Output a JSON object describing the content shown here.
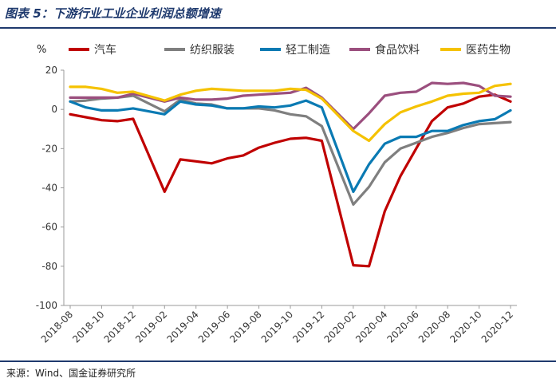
{
  "header": {
    "title": "图表 5：下游行业工业企业利润总额增速"
  },
  "footer": {
    "source": "来源：Wind、国金证券研究所"
  },
  "chart_data": {
    "type": "line",
    "unit_label": "%",
    "ylim": [
      -100,
      20
    ],
    "yticks": [
      20,
      0,
      -20,
      -40,
      -60,
      -80,
      -100
    ],
    "x": [
      "2018-08",
      "2018-09",
      "2018-10",
      "2018-11",
      "2018-12",
      "2019-01",
      "2019-02",
      "2019-03",
      "2019-04",
      "2019-05",
      "2019-06",
      "2019-07",
      "2019-08",
      "2019-09",
      "2019-10",
      "2019-11",
      "2019-12",
      "2020-01",
      "2020-02",
      "2020-03",
      "2020-04",
      "2020-05",
      "2020-06",
      "2020-07",
      "2020-08",
      "2020-09",
      "2020-10",
      "2020-11",
      "2020-12"
    ],
    "xtick_labels": [
      "2018-08",
      "2018-10",
      "2018-12",
      "2019-02",
      "2019-04",
      "2019-06",
      "2019-08",
      "2019-10",
      "2019-12",
      "2020-02",
      "2020-04",
      "2020-06",
      "2020-08",
      "2020-10",
      "2020-12"
    ],
    "legend_position": "top",
    "grid": false,
    "series": [
      {
        "name": "汽车",
        "color": "#c00000",
        "values": [
          -2.5,
          -4,
          -5.5,
          -6,
          -4.8,
          null,
          -42,
          -25.5,
          -26.5,
          -27.5,
          -25,
          -23.5,
          -19.5,
          -17,
          -15,
          -14.5,
          -16,
          null,
          -79.5,
          -80,
          -52,
          -34,
          -20,
          -6,
          1,
          3,
          6.5,
          7.5,
          4
        ]
      },
      {
        "name": "纺织服装",
        "color": "#7f7f7f",
        "values": [
          4,
          4.5,
          5.5,
          6,
          7,
          null,
          -1,
          5,
          3,
          2.5,
          0.5,
          0.5,
          0.5,
          -0.5,
          -2.5,
          -3.5,
          -8.5,
          null,
          -48.5,
          -39.5,
          -27,
          -20,
          -17,
          -14,
          -12,
          -9.5,
          -7.5,
          -7,
          -6.5
        ]
      },
      {
        "name": "轻工制造",
        "color": "#0a7ab3",
        "values": [
          4,
          1,
          -0.5,
          -0.5,
          0.5,
          null,
          -2.5,
          4,
          2.5,
          2,
          0.5,
          0.5,
          1.5,
          1,
          2,
          4.5,
          1,
          null,
          -42,
          -28,
          -17.5,
          -14,
          -14,
          -11,
          -11,
          -8,
          -6,
          -5,
          -0.5
        ]
      },
      {
        "name": "食品饮料",
        "color": "#9b4f7e",
        "values": [
          6,
          6,
          6,
          6,
          8,
          null,
          4,
          6,
          5,
          5,
          5.5,
          7,
          7.5,
          8,
          8.5,
          11,
          6,
          null,
          -10,
          -2,
          7,
          8.5,
          9,
          13.5,
          13,
          13.5,
          12,
          7,
          6.5
        ]
      },
      {
        "name": "医药生物",
        "color": "#f5c200",
        "values": [
          11.5,
          11.5,
          10.5,
          8.5,
          9,
          null,
          4.5,
          7.5,
          9.5,
          10.5,
          10,
          9.5,
          9.5,
          9.5,
          10.5,
          10,
          5.5,
          null,
          -11,
          -16,
          -7.5,
          -1.5,
          1.5,
          4,
          7,
          8,
          8.5,
          12,
          13
        ]
      }
    ]
  }
}
